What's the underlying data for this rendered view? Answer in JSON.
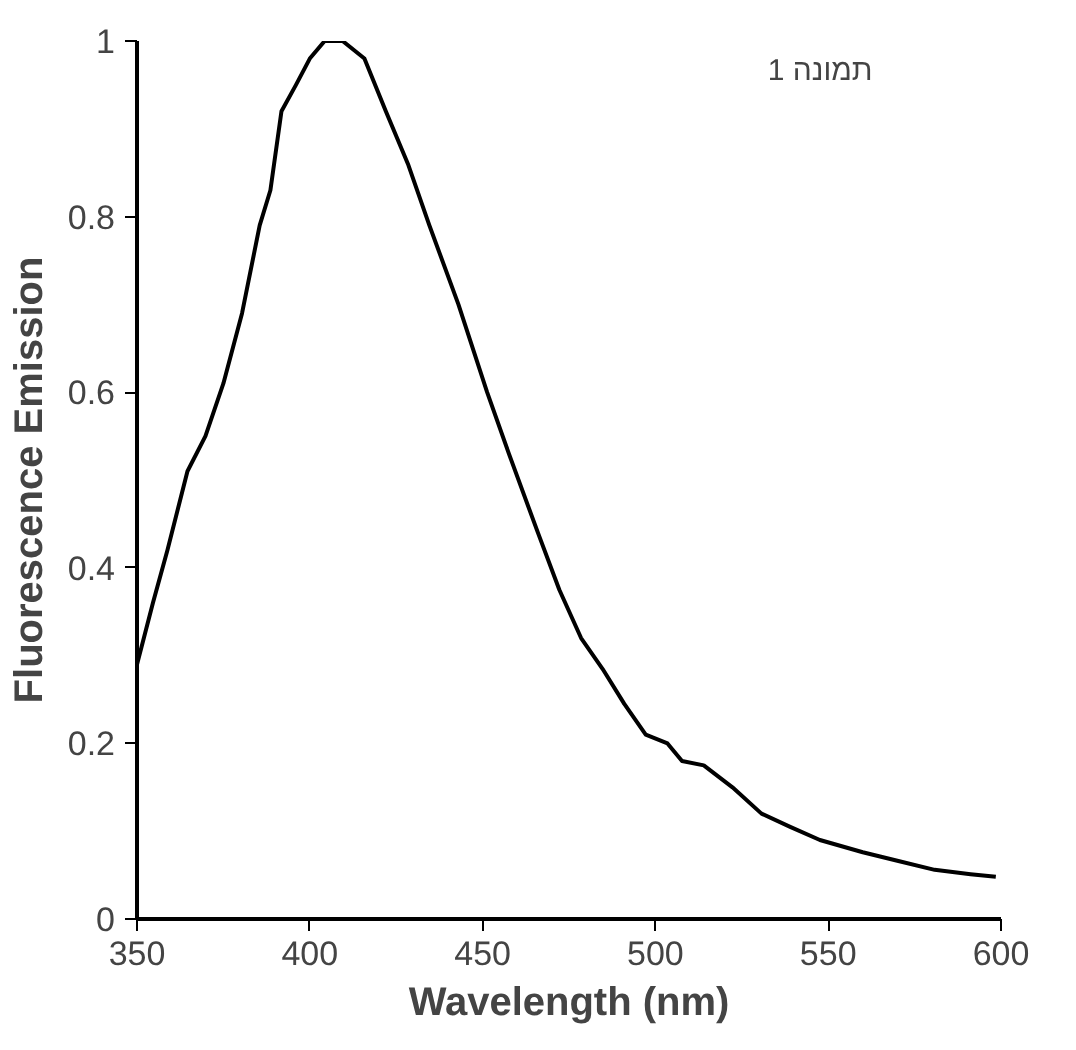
{
  "chart_data": {
    "type": "line",
    "xlabel": "Wavelength (nm)",
    "ylabel": "Fluorescence Emission",
    "annotations": [
      "תמונה 1"
    ],
    "x": [
      350,
      354.6,
      358.8,
      364.6,
      369.8,
      375,
      380.4,
      385.5,
      388.6,
      391.8,
      396,
      400,
      404.3,
      409.5,
      415.8,
      422,
      428.4,
      434.6,
      443,
      451.3,
      457.6,
      466,
      472.2,
      478.5,
      484.7,
      491,
      497.2,
      503.5,
      507.7,
      514,
      522.3,
      530.7,
      539,
      547.6,
      560,
      570.3,
      580.8,
      591.2,
      598.5
    ],
    "series": [
      {
        "color": "#000000",
        "values": [
          0.29,
          0.36,
          0.42,
          0.51,
          0.55,
          0.61,
          0.69,
          0.79,
          0.83,
          0.92,
          0.95,
          0.98,
          1.0,
          1.0,
          0.98,
          0.92,
          0.86,
          0.79,
          0.7,
          0.6,
          0.53,
          0.44,
          0.375,
          0.32,
          0.285,
          0.245,
          0.21,
          0.2,
          0.18,
          0.175,
          0.15,
          0.12,
          0.105,
          0.09,
          0.076,
          0.066,
          0.056,
          0.051,
          0.048
        ]
      }
    ],
    "xlim": [
      350,
      600
    ],
    "ylim": [
      0,
      1
    ],
    "xticks": [
      350,
      400,
      450,
      500,
      550,
      600
    ],
    "yticks": [
      0,
      0.2,
      0.4,
      0.6,
      0.8,
      1
    ],
    "grid": false,
    "marker": "none",
    "line_style": "solid"
  }
}
